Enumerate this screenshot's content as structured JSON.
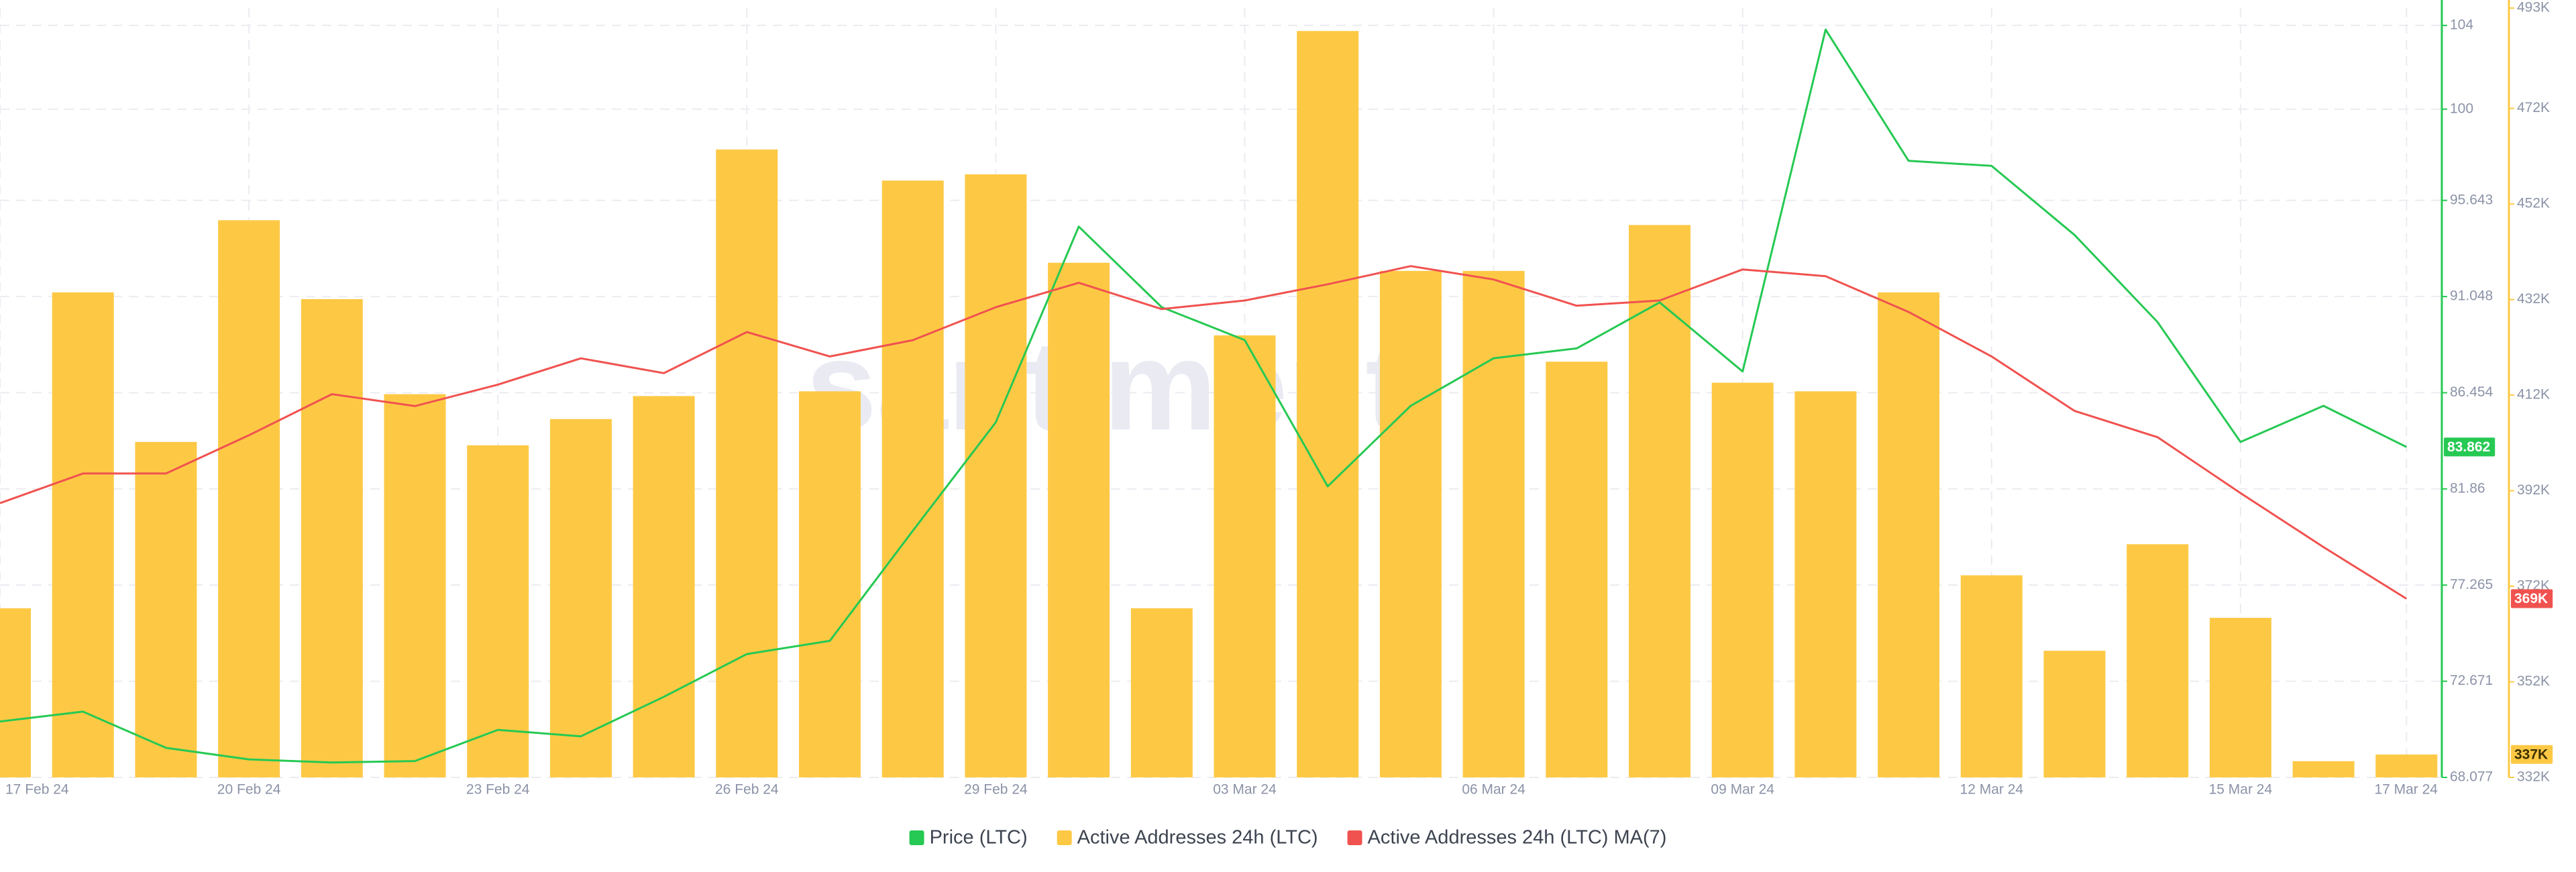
{
  "chart_data": {
    "type": "combo",
    "watermark": "santiment",
    "categories": [
      "17 Feb 24",
      null,
      null,
      "20 Feb 24",
      null,
      null,
      "23 Feb 24",
      null,
      null,
      "26 Feb 24",
      null,
      null,
      "29 Feb 24",
      null,
      null,
      "03 Mar 24",
      null,
      null,
      "06 Mar 24",
      null,
      null,
      "09 Mar 24",
      null,
      null,
      "12 Mar 24",
      null,
      null,
      "15 Mar 24",
      null,
      "17 Mar 24"
    ],
    "ylim": [
      68.077,
      104.83
    ],
    "yticks": [
      68.077,
      72.671,
      77.265,
      81.86,
      86.454,
      91.048,
      95.643,
      100,
      104
    ],
    "y2lim": [
      332000,
      493000
    ],
    "y2ticks": [
      {
        "value": 332000,
        "label": "332K"
      },
      {
        "value": 352000,
        "label": "352K"
      },
      {
        "value": 372000,
        "label": "372K"
      },
      {
        "value": 392000,
        "label": "392K"
      },
      {
        "value": 412000,
        "label": "412K"
      },
      {
        "value": 432000,
        "label": "432K"
      },
      {
        "value": 452000,
        "label": "452K"
      },
      {
        "value": 472000,
        "label": "472K"
      },
      {
        "value": 493000,
        "label": "493K"
      }
    ],
    "grid": true,
    "legend": "bottom",
    "series": [
      {
        "name": "Active Addresses 24h (LTC)",
        "type": "bar",
        "axis": "y2",
        "color": "#fdc945",
        "values": [
          367400,
          433500,
          402200,
          448600,
          432100,
          412200,
          401500,
          407000,
          411800,
          463400,
          412800,
          456900,
          458200,
          439700,
          367400,
          424500,
          488200,
          438000,
          438000,
          419000,
          447600,
          414600,
          412800,
          433500,
          374300,
          358500,
          380800,
          365400,
          335400,
          336800
        ],
        "value_labels": [
          null,
          null,
          null,
          null,
          null,
          null,
          null,
          null,
          null,
          null,
          null,
          null,
          null,
          null,
          null,
          null,
          null,
          null,
          null,
          null,
          null,
          null,
          null,
          null,
          null,
          null,
          null,
          null,
          null,
          "337K"
        ]
      },
      {
        "name": "Price (LTC)",
        "type": "line",
        "axis": "y",
        "color": "#26c953",
        "values": [
          70.75,
          71.22,
          69.49,
          68.94,
          68.79,
          68.86,
          70.35,
          70.04,
          71.93,
          73.97,
          74.6,
          79.86,
          85.04,
          94.39,
          90.54,
          88.97,
          81.98,
          85.83,
          88.1,
          88.57,
          90.77,
          87.47,
          103.8,
          97.53,
          97.29,
          93.99,
          89.83,
          84.1,
          85.83,
          83.862
        ]
      },
      {
        "name": "Active Addresses 24h (LTC) MA(7)",
        "type": "line",
        "axis": "y2",
        "color": "#f0524f",
        "values": [
          389400,
          395600,
          395600,
          403600,
          412200,
          409700,
          414200,
          419700,
          416600,
          425200,
          420100,
          423500,
          430400,
          435500,
          430000,
          431800,
          435200,
          439000,
          436200,
          430700,
          431800,
          438300,
          436900,
          429400,
          420100,
          408700,
          403200,
          391500,
          380200,
          369400
        ],
        "value_labels": [
          null,
          null,
          null,
          null,
          null,
          null,
          null,
          null,
          null,
          null,
          null,
          null,
          null,
          null,
          null,
          null,
          null,
          null,
          null,
          null,
          null,
          null,
          null,
          null,
          null,
          null,
          null,
          null,
          null,
          "369K"
        ]
      }
    ]
  }
}
